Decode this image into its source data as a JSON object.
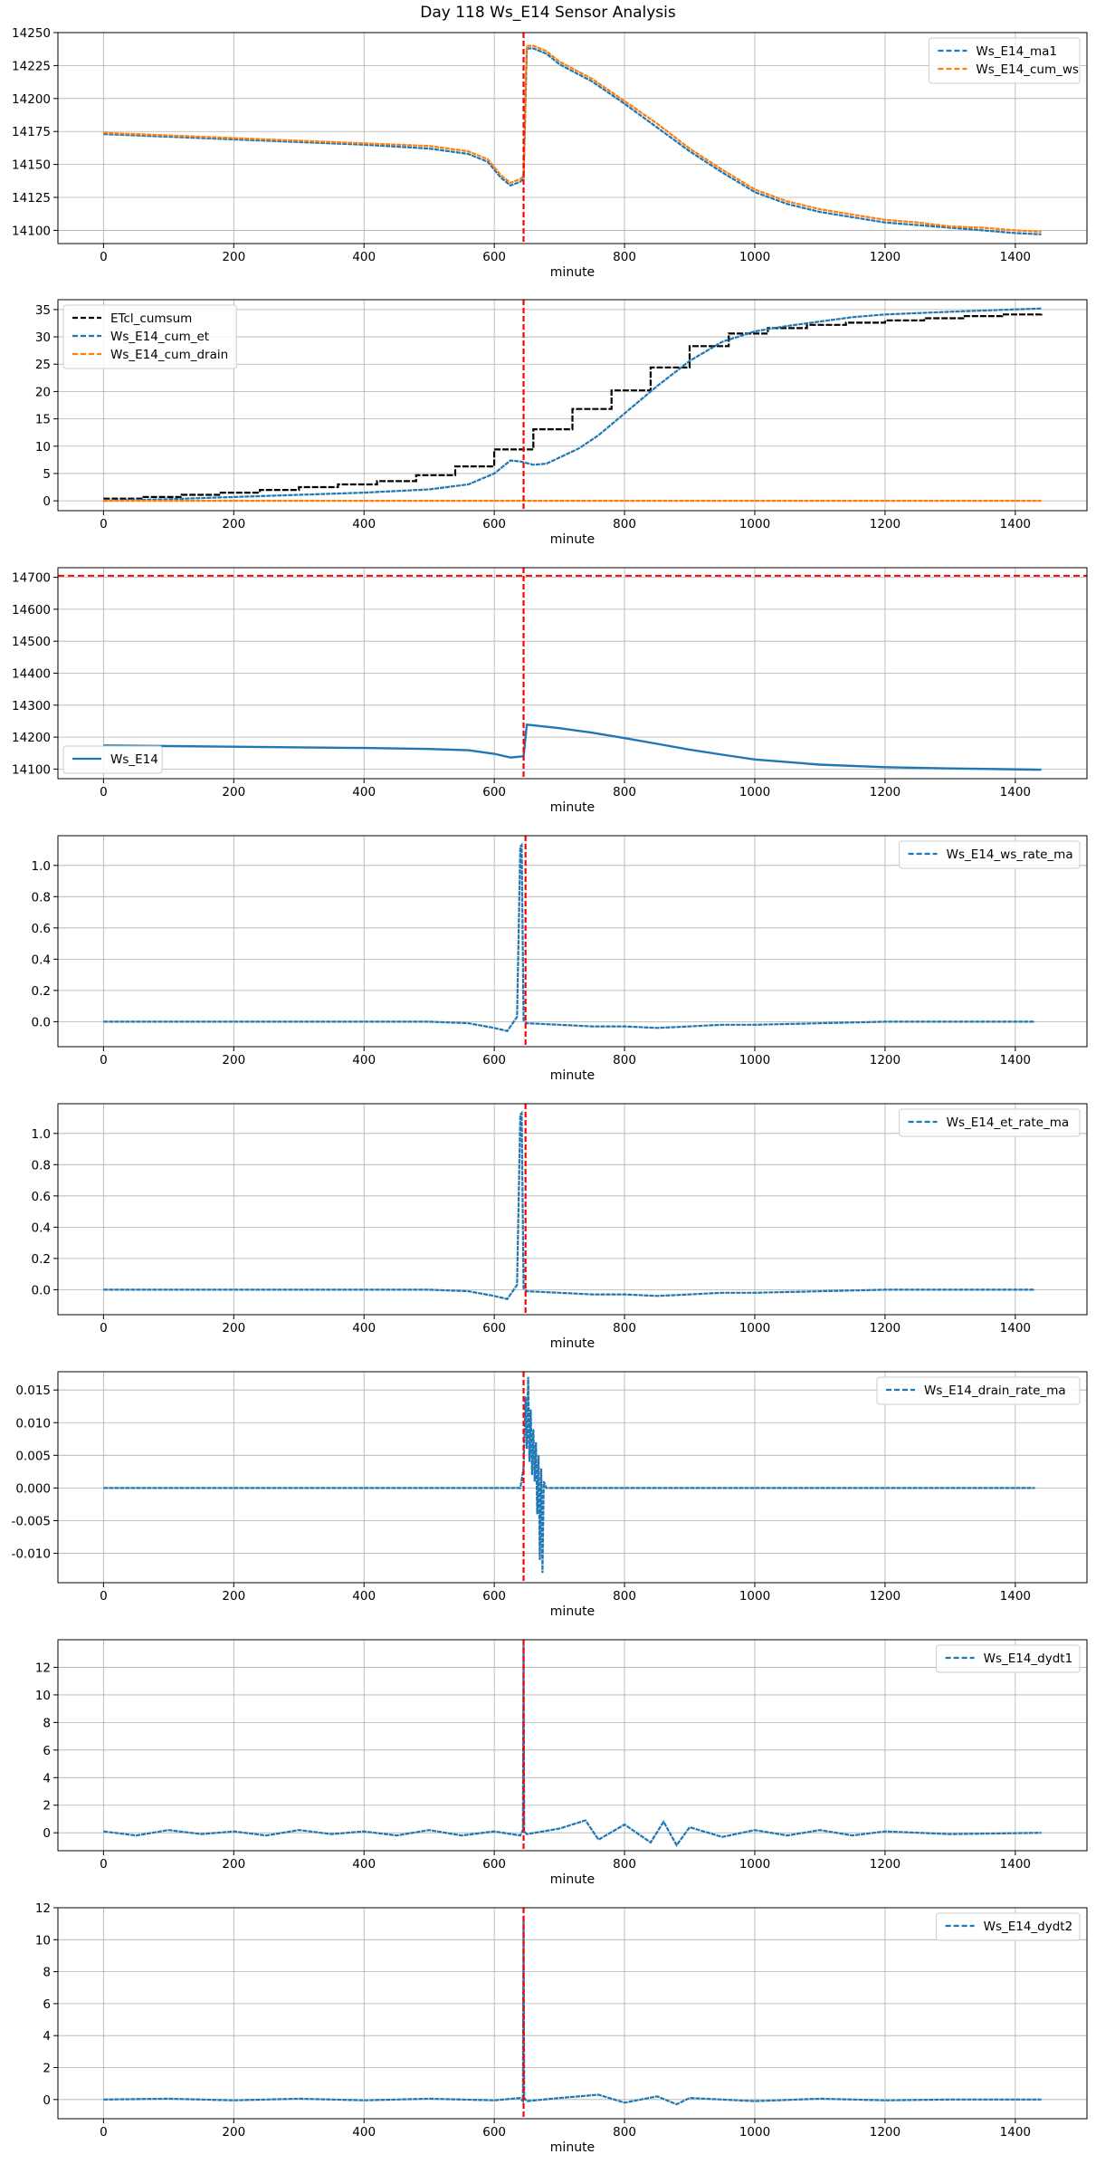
{
  "figure": {
    "title": "Day 118 Ws_E14 Sensor Analysis"
  },
  "colors": {
    "blue": "#1f77b4",
    "orange": "#ff7f0e",
    "black": "#000000",
    "red": "#ff0000",
    "grid": "#b0b0b0"
  },
  "chart_data": [
    {
      "type": "line",
      "title": "",
      "xlabel": "minute",
      "ylabel": "",
      "xlim": [
        -70,
        1510
      ],
      "ylim": [
        14090,
        14250
      ],
      "xticks": [
        0,
        200,
        400,
        600,
        800,
        1000,
        1200,
        1400
      ],
      "yticks": [
        14100,
        14125,
        14150,
        14175,
        14200,
        14225,
        14250
      ],
      "grid": true,
      "legend": "top-right",
      "vlines": [
        645
      ],
      "series": [
        {
          "name": "Ws_E14_ma1",
          "color": "#1f77b4",
          "style": "dashed",
          "x": [
            0,
            100,
            200,
            300,
            400,
            500,
            560,
            590,
            610,
            625,
            640,
            645,
            650,
            660,
            680,
            700,
            750,
            800,
            850,
            900,
            950,
            1000,
            1050,
            1100,
            1150,
            1200,
            1250,
            1300,
            1350,
            1400,
            1440
          ],
          "y": [
            14173,
            14171,
            14169,
            14167,
            14165,
            14162,
            14158,
            14152,
            14140,
            14134,
            14137,
            14139,
            14238,
            14238,
            14234,
            14226,
            14213,
            14196,
            14178,
            14160,
            14144,
            14129,
            14120,
            14114,
            14110,
            14106,
            14104,
            14102,
            14100,
            14098,
            14097
          ]
        },
        {
          "name": "Ws_E14_cum_ws",
          "color": "#ff7f0e",
          "style": "dashed",
          "x": [
            0,
            100,
            200,
            300,
            400,
            500,
            560,
            590,
            610,
            625,
            640,
            645,
            650,
            660,
            680,
            700,
            750,
            800,
            850,
            900,
            950,
            1000,
            1050,
            1100,
            1150,
            1200,
            1250,
            1300,
            1350,
            1400,
            1440
          ],
          "y": [
            14174,
            14172,
            14170,
            14168,
            14166,
            14164,
            14160,
            14154,
            14142,
            14136,
            14139,
            14141,
            14240,
            14240,
            14236,
            14228,
            14215,
            14198,
            14181,
            14162,
            14146,
            14131,
            14122,
            14116,
            14112,
            14108,
            14106,
            14103,
            14102,
            14100,
            14099
          ]
        }
      ]
    },
    {
      "type": "line",
      "title": "",
      "xlabel": "minute",
      "ylabel": "",
      "xlim": [
        -70,
        1510
      ],
      "ylim": [
        -1.8,
        36.8
      ],
      "xticks": [
        0,
        200,
        400,
        600,
        800,
        1000,
        1200,
        1400
      ],
      "yticks": [
        0,
        5,
        10,
        15,
        20,
        25,
        30,
        35
      ],
      "grid": true,
      "legend": "top-left",
      "vlines": [
        645
      ],
      "series": [
        {
          "name": "ETcl_cumsum",
          "color": "#000000",
          "style": "dashed",
          "step": true,
          "x": [
            0,
            60,
            120,
            180,
            240,
            300,
            360,
            420,
            480,
            540,
            600,
            660,
            720,
            780,
            840,
            900,
            960,
            1020,
            1080,
            1140,
            1200,
            1260,
            1320,
            1380,
            1440
          ],
          "y": [
            0.4,
            0.7,
            1.1,
            1.5,
            2.0,
            2.5,
            3.0,
            3.6,
            4.7,
            6.3,
            9.4,
            13.1,
            16.8,
            20.2,
            24.4,
            28.3,
            30.6,
            31.6,
            32.2,
            32.6,
            33.0,
            33.4,
            33.8,
            34.1,
            34.3
          ]
        },
        {
          "name": "Ws_E14_cum_et",
          "color": "#1f77b4",
          "style": "dashed",
          "x": [
            0,
            100,
            200,
            300,
            400,
            500,
            560,
            600,
            625,
            640,
            660,
            680,
            700,
            730,
            760,
            800,
            850,
            900,
            950,
            1000,
            1050,
            1100,
            1150,
            1200,
            1300,
            1440
          ],
          "y": [
            0,
            0.3,
            0.7,
            1.1,
            1.5,
            2.1,
            3.0,
            5.0,
            7.4,
            7.2,
            6.6,
            6.8,
            7.9,
            9.6,
            12.0,
            16.0,
            21.0,
            25.6,
            29.1,
            31.0,
            32.0,
            32.8,
            33.6,
            34.1,
            34.6,
            35.2
          ]
        },
        {
          "name": "Ws_E14_cum_drain",
          "color": "#ff7f0e",
          "style": "dashed",
          "x": [
            0,
            1440
          ],
          "y": [
            0,
            0
          ]
        }
      ]
    },
    {
      "type": "line",
      "title": "",
      "xlabel": "minute",
      "ylabel": "",
      "xlim": [
        -70,
        1510
      ],
      "ylim": [
        14070,
        14730
      ],
      "xticks": [
        0,
        200,
        400,
        600,
        800,
        1000,
        1200,
        1400
      ],
      "yticks": [
        14100,
        14200,
        14300,
        14400,
        14500,
        14600,
        14700
      ],
      "grid": true,
      "legend": "bottom-left",
      "vlines": [
        645
      ],
      "hlines": [
        14705
      ],
      "series": [
        {
          "name": "Ws_E14",
          "color": "#1f77b4",
          "style": "solid",
          "x": [
            0,
            100,
            200,
            300,
            400,
            500,
            560,
            600,
            625,
            640,
            645,
            650,
            700,
            750,
            800,
            850,
            900,
            950,
            1000,
            1100,
            1200,
            1300,
            1440
          ],
          "y": [
            14174,
            14172,
            14170,
            14168,
            14166,
            14163,
            14159,
            14148,
            14136,
            14139,
            14140,
            14239,
            14228,
            14214,
            14197,
            14179,
            14161,
            14145,
            14130,
            14114,
            14106,
            14102,
            14098
          ]
        }
      ]
    },
    {
      "type": "line",
      "title": "",
      "xlabel": "minute",
      "ylabel": "",
      "xlim": [
        -70,
        1510
      ],
      "ylim": [
        -0.16,
        1.19
      ],
      "xticks": [
        0,
        200,
        400,
        600,
        800,
        1000,
        1200,
        1400
      ],
      "yticks": [
        0.0,
        0.2,
        0.4,
        0.6,
        0.8,
        1.0
      ],
      "grid": true,
      "legend": "top-right",
      "vlines": [
        648
      ],
      "series": [
        {
          "name": "Ws_E14_ws_rate_ma",
          "color": "#1f77b4",
          "style": "dashed",
          "x": [
            0,
            100,
            200,
            300,
            400,
            500,
            560,
            600,
            620,
            635,
            640,
            642,
            645,
            650,
            700,
            750,
            800,
            850,
            900,
            950,
            1000,
            1100,
            1200,
            1300,
            1430
          ],
          "y": [
            0,
            0,
            0,
            0,
            0,
            0,
            -0.01,
            -0.04,
            -0.06,
            0.03,
            1.12,
            1.13,
            0.01,
            -0.01,
            -0.02,
            -0.03,
            -0.03,
            -0.04,
            -0.03,
            -0.02,
            -0.02,
            -0.01,
            0,
            0,
            0
          ]
        }
      ]
    },
    {
      "type": "line",
      "title": "",
      "xlabel": "minute",
      "ylabel": "",
      "xlim": [
        -70,
        1510
      ],
      "ylim": [
        -0.16,
        1.19
      ],
      "xticks": [
        0,
        200,
        400,
        600,
        800,
        1000,
        1200,
        1400
      ],
      "yticks": [
        0.0,
        0.2,
        0.4,
        0.6,
        0.8,
        1.0
      ],
      "grid": true,
      "legend": "top-right",
      "vlines": [
        648
      ],
      "series": [
        {
          "name": "Ws_E14_et_rate_ma",
          "color": "#1f77b4",
          "style": "dashed",
          "x": [
            0,
            100,
            200,
            300,
            400,
            500,
            560,
            600,
            620,
            635,
            640,
            642,
            645,
            650,
            700,
            750,
            800,
            850,
            900,
            950,
            1000,
            1100,
            1200,
            1300,
            1430
          ],
          "y": [
            0,
            0,
            0,
            0,
            0,
            0,
            -0.01,
            -0.04,
            -0.06,
            0.03,
            1.12,
            1.13,
            0.01,
            -0.01,
            -0.02,
            -0.03,
            -0.03,
            -0.04,
            -0.03,
            -0.02,
            -0.02,
            -0.01,
            0,
            0,
            0
          ]
        }
      ]
    },
    {
      "type": "line",
      "title": "",
      "xlabel": "minute",
      "ylabel": "",
      "xlim": [
        -70,
        1510
      ],
      "ylim": [
        -0.0145,
        0.0178
      ],
      "xticks": [
        0,
        200,
        400,
        600,
        800,
        1000,
        1200,
        1400
      ],
      "yticks": [
        -0.01,
        -0.005,
        0.0,
        0.005,
        0.01,
        0.015
      ],
      "ytick_labels": [
        "-0.010",
        "-0.005",
        "0.000",
        "0.005",
        "0.010",
        "0.015"
      ],
      "grid": true,
      "legend": "top-right",
      "vlines": [
        645
      ],
      "series": [
        {
          "name": "Ws_E14_drain_rate_ma",
          "color": "#1f77b4",
          "style": "dashed",
          "x": [
            0,
            640,
            645,
            648,
            650,
            652,
            654,
            656,
            658,
            660,
            662,
            664,
            666,
            668,
            670,
            672,
            674,
            676,
            680,
            1430
          ],
          "y": [
            0,
            0,
            0.003,
            0.014,
            0.006,
            0.017,
            0.004,
            0.012,
            0.002,
            0.009,
            0.001,
            0.007,
            -0.004,
            0.005,
            -0.011,
            0.003,
            -0.013,
            0.001,
            0,
            0
          ]
        }
      ]
    },
    {
      "type": "line",
      "title": "",
      "xlabel": "minute",
      "ylabel": "",
      "xlim": [
        -70,
        1510
      ],
      "ylim": [
        -1.3,
        14.0
      ],
      "xticks": [
        0,
        200,
        400,
        600,
        800,
        1000,
        1200,
        1400
      ],
      "yticks": [
        0,
        2,
        4,
        6,
        8,
        10,
        12
      ],
      "grid": true,
      "legend": "top-right",
      "vlines": [
        645
      ],
      "series": [
        {
          "name": "Ws_E14_dydt1",
          "color": "#1f77b4",
          "style": "dashed",
          "x": [
            0,
            50,
            100,
            150,
            200,
            250,
            300,
            350,
            400,
            450,
            500,
            550,
            600,
            640,
            644,
            645,
            646,
            650,
            700,
            740,
            760,
            800,
            840,
            860,
            880,
            900,
            950,
            1000,
            1050,
            1100,
            1150,
            1200,
            1300,
            1440
          ],
          "y": [
            0.1,
            -0.2,
            0.2,
            -0.1,
            0.1,
            -0.2,
            0.2,
            -0.1,
            0.1,
            -0.2,
            0.2,
            -0.2,
            0.1,
            -0.2,
            0.2,
            13.6,
            0.1,
            -0.1,
            0.3,
            0.9,
            -0.5,
            0.6,
            -0.7,
            0.8,
            -0.9,
            0.4,
            -0.3,
            0.2,
            -0.2,
            0.2,
            -0.2,
            0.1,
            -0.1,
            0
          ]
        }
      ]
    },
    {
      "type": "line",
      "title": "",
      "xlabel": "minute",
      "ylabel": "",
      "xlim": [
        -70,
        1510
      ],
      "ylim": [
        -1.2,
        12.0
      ],
      "xticks": [
        0,
        200,
        400,
        600,
        800,
        1000,
        1200,
        1400
      ],
      "yticks": [
        0,
        2,
        4,
        6,
        8,
        10,
        12
      ],
      "grid": true,
      "legend": "top-right",
      "vlines": [
        645
      ],
      "series": [
        {
          "name": "Ws_E14_dydt2",
          "color": "#1f77b4",
          "style": "dashed",
          "x": [
            0,
            100,
            200,
            300,
            400,
            500,
            600,
            640,
            644,
            645,
            646,
            650,
            700,
            760,
            800,
            850,
            880,
            900,
            1000,
            1100,
            1200,
            1300,
            1440
          ],
          "y": [
            0,
            0.05,
            -0.05,
            0.05,
            -0.05,
            0.05,
            -0.05,
            0.1,
            -0.1,
            11.5,
            0.1,
            -0.1,
            0.1,
            0.3,
            -0.2,
            0.2,
            -0.3,
            0.1,
            -0.1,
            0.05,
            -0.05,
            0,
            0
          ]
        }
      ]
    }
  ]
}
